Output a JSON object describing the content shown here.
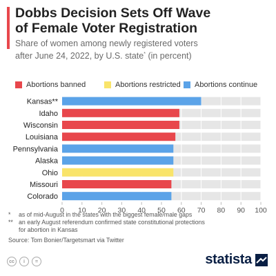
{
  "header": {
    "title_line1": "Dobbs Decision Sets Off Wave",
    "title_line2": "of Female Voter Registration",
    "subtitle_line1": "Share of women among newly registered voters",
    "subtitle_line2_main": "after June 24, 2022, by U.S. state",
    "subtitle_sup": "*",
    "subtitle_line2_end": " (in percent)"
  },
  "colors": {
    "banned": "#e8474c",
    "restricted": "#f9e46a",
    "continue": "#5ba3e8",
    "track": "#e6e6e6",
    "accent": "#e8474c",
    "brand": "#0a1f44"
  },
  "legend": [
    {
      "label": "Abortions banned",
      "color_key": "banned"
    },
    {
      "label": "Abortions restricted",
      "color_key": "restricted"
    },
    {
      "label": "Abortions continue",
      "color_key": "continue"
    }
  ],
  "chart_data": {
    "type": "bar",
    "orientation": "horizontal",
    "categories": [
      "Kansas**",
      "Idaho",
      "Wisconsin",
      "Louisiana",
      "Pennsylvania",
      "Alaska",
      "Ohio",
      "Missouri",
      "Colorado"
    ],
    "values": [
      70,
      59,
      59,
      57,
      56,
      56,
      56,
      55,
      55
    ],
    "status": [
      "continue",
      "banned",
      "banned",
      "banned",
      "continue",
      "continue",
      "restricted",
      "banned",
      "continue"
    ],
    "xlim": [
      0,
      100
    ],
    "xticks": [
      0,
      10,
      20,
      30,
      40,
      50,
      60,
      70,
      80,
      90,
      100
    ],
    "grid": true
  },
  "footnotes": {
    "note1_mark": "*",
    "note1_text": "as of mid-August in the states with the biggest female/male gaps",
    "note2_mark": "**",
    "note2_line1": "an early August referendum confirmed state constitutional protections",
    "note2_line2": "for abortion in Kansas",
    "source": "Source: Tom Bonier/Targetsmart via Twitter"
  },
  "license_icons": [
    "cc",
    "i",
    "="
  ],
  "brand": {
    "name": "statista"
  }
}
